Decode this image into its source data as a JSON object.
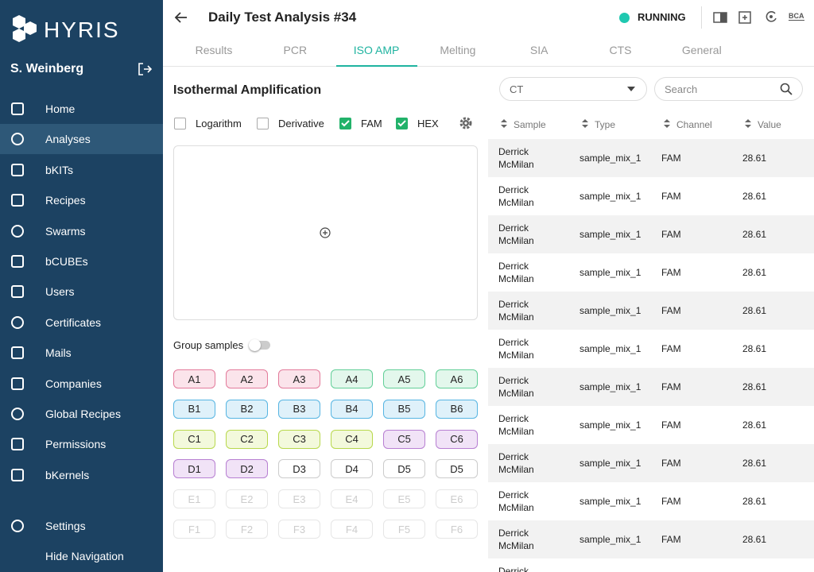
{
  "sidebar": {
    "logo": "HYRIS",
    "user": "S. Weinberg",
    "nav": [
      {
        "label": "Home"
      },
      {
        "label": "Analyses",
        "active": true
      },
      {
        "label": "bKITs"
      },
      {
        "label": "Recipes"
      },
      {
        "label": "Swarms"
      },
      {
        "label": "bCUBEs"
      },
      {
        "label": "Users"
      },
      {
        "label": "Certificates"
      },
      {
        "label": "Mails"
      },
      {
        "label": "Companies"
      },
      {
        "label": "Global Recipes"
      },
      {
        "label": "Permissions"
      },
      {
        "label": "bKernels"
      }
    ],
    "bottom": [
      "Settings",
      "Hide Navigation"
    ]
  },
  "header": {
    "title": "Daily Test Analysis #34",
    "status": "RUNNING",
    "badge": "BCA"
  },
  "tabs": [
    {
      "label": "Results"
    },
    {
      "label": "PCR"
    },
    {
      "label": "ISO AMP",
      "active": true
    },
    {
      "label": "Melting"
    },
    {
      "label": "SIA"
    },
    {
      "label": "CTS"
    },
    {
      "label": "General"
    }
  ],
  "panel": {
    "title": "Isothermal Amplification",
    "options": [
      {
        "label": "Logarithm",
        "checked": false
      },
      {
        "label": "Derivative",
        "checked": false
      },
      {
        "label": "FAM",
        "checked": true
      },
      {
        "label": "HEX",
        "checked": true
      }
    ],
    "group_label": "Group samples",
    "group_on": false
  },
  "wells": [
    [
      {
        "label": "A1",
        "color": "pink"
      },
      {
        "label": "A2",
        "color": "pink"
      },
      {
        "label": "A3",
        "color": "pink"
      },
      {
        "label": "A4",
        "color": "green"
      },
      {
        "label": "A5",
        "color": "green"
      },
      {
        "label": "A6",
        "color": "green"
      }
    ],
    [
      {
        "label": "B1",
        "color": "blue"
      },
      {
        "label": "B2",
        "color": "blue"
      },
      {
        "label": "B3",
        "color": "blue"
      },
      {
        "label": "B4",
        "color": "blue"
      },
      {
        "label": "B5",
        "color": "blue"
      },
      {
        "label": "B6",
        "color": "blue"
      }
    ],
    [
      {
        "label": "C1",
        "color": "lime"
      },
      {
        "label": "C2",
        "color": "lime"
      },
      {
        "label": "C3",
        "color": "lime"
      },
      {
        "label": "C4",
        "color": "lime"
      },
      {
        "label": "C5",
        "color": "purple"
      },
      {
        "label": "C6",
        "color": "purple"
      }
    ],
    [
      {
        "label": "D1",
        "color": "purple"
      },
      {
        "label": "D2",
        "color": "purple"
      },
      {
        "label": "D3",
        "color": "white"
      },
      {
        "label": "D4",
        "color": "white"
      },
      {
        "label": "D5",
        "color": "white"
      },
      {
        "label": "D5",
        "color": "white"
      }
    ],
    [
      {
        "label": "E1",
        "color": "disabled"
      },
      {
        "label": "E2",
        "color": "disabled"
      },
      {
        "label": "E3",
        "color": "disabled"
      },
      {
        "label": "E4",
        "color": "disabled"
      },
      {
        "label": "E5",
        "color": "disabled"
      },
      {
        "label": "E6",
        "color": "disabled"
      }
    ],
    [
      {
        "label": "F1",
        "color": "disabled"
      },
      {
        "label": "F2",
        "color": "disabled"
      },
      {
        "label": "F3",
        "color": "disabled"
      },
      {
        "label": "F4",
        "color": "disabled"
      },
      {
        "label": "F5",
        "color": "disabled"
      },
      {
        "label": "F6",
        "color": "disabled"
      }
    ]
  ],
  "filter": {
    "selected": "CT",
    "search_placeholder": "Search"
  },
  "table": {
    "columns": [
      "Sample",
      "Type",
      "Channel",
      "Value"
    ],
    "rows": [
      {
        "sample": "Derrick McMilan",
        "type": "sample_mix_1",
        "channel": "FAM",
        "value": 28.61
      },
      {
        "sample": "Derrick McMilan",
        "type": "sample_mix_1",
        "channel": "FAM",
        "value": 28.61
      },
      {
        "sample": "Derrick McMilan",
        "type": "sample_mix_1",
        "channel": "FAM",
        "value": 28.61
      },
      {
        "sample": "Derrick McMilan",
        "type": "sample_mix_1",
        "channel": "FAM",
        "value": 28.61
      },
      {
        "sample": "Derrick McMilan",
        "type": "sample_mix_1",
        "channel": "FAM",
        "value": 28.61
      },
      {
        "sample": "Derrick McMilan",
        "type": "sample_mix_1",
        "channel": "FAM",
        "value": 28.61
      },
      {
        "sample": "Derrick McMilan",
        "type": "sample_mix_1",
        "channel": "FAM",
        "value": 28.61
      },
      {
        "sample": "Derrick McMilan",
        "type": "sample_mix_1",
        "channel": "FAM",
        "value": 28.61
      },
      {
        "sample": "Derrick McMilan",
        "type": "sample_mix_1",
        "channel": "FAM",
        "value": 28.61
      },
      {
        "sample": "Derrick McMilan",
        "type": "sample_mix_1",
        "channel": "FAM",
        "value": 28.61
      },
      {
        "sample": "Derrick McMilan",
        "type": "sample_mix_1",
        "channel": "FAM",
        "value": 28.61
      },
      {
        "sample": "Derrick"
      }
    ]
  }
}
